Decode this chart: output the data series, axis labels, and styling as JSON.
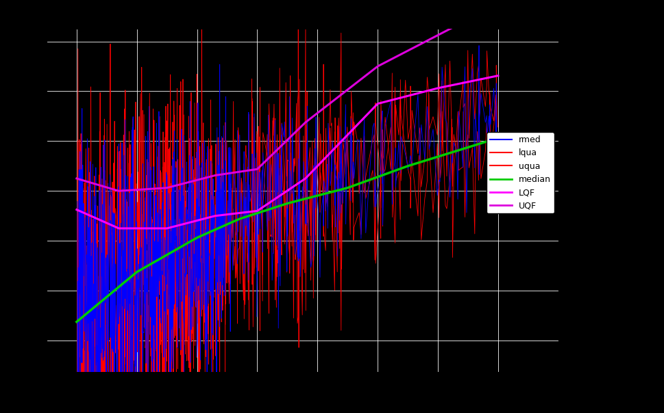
{
  "background_color": "#000000",
  "plot_bg_color": "#000000",
  "grid_color": "#ffffff",
  "title": "",
  "rmed_color": "#0000ff",
  "lqua_color": "#ff0000",
  "uqua_color": "#ff0000",
  "median_color": "#00cc00",
  "lqf_color": "#ff00ff",
  "uqf_color": "#dd00dd",
  "axis_color": "#000000",
  "tick_color": "#000000",
  "legend_labels": [
    "rmed",
    "lqua",
    "uqua",
    "median",
    "LQF",
    "UQF"
  ],
  "legend_colors": [
    "#0000ff",
    "#ff0000",
    "#ff0000",
    "#00cc00",
    "#ff00ff",
    "#dd00dd"
  ],
  "xlim": [
    0,
    850
  ],
  "ylim": [
    0,
    550
  ],
  "n_dense": 800,
  "n_mid": 200,
  "n_sparse": 100
}
